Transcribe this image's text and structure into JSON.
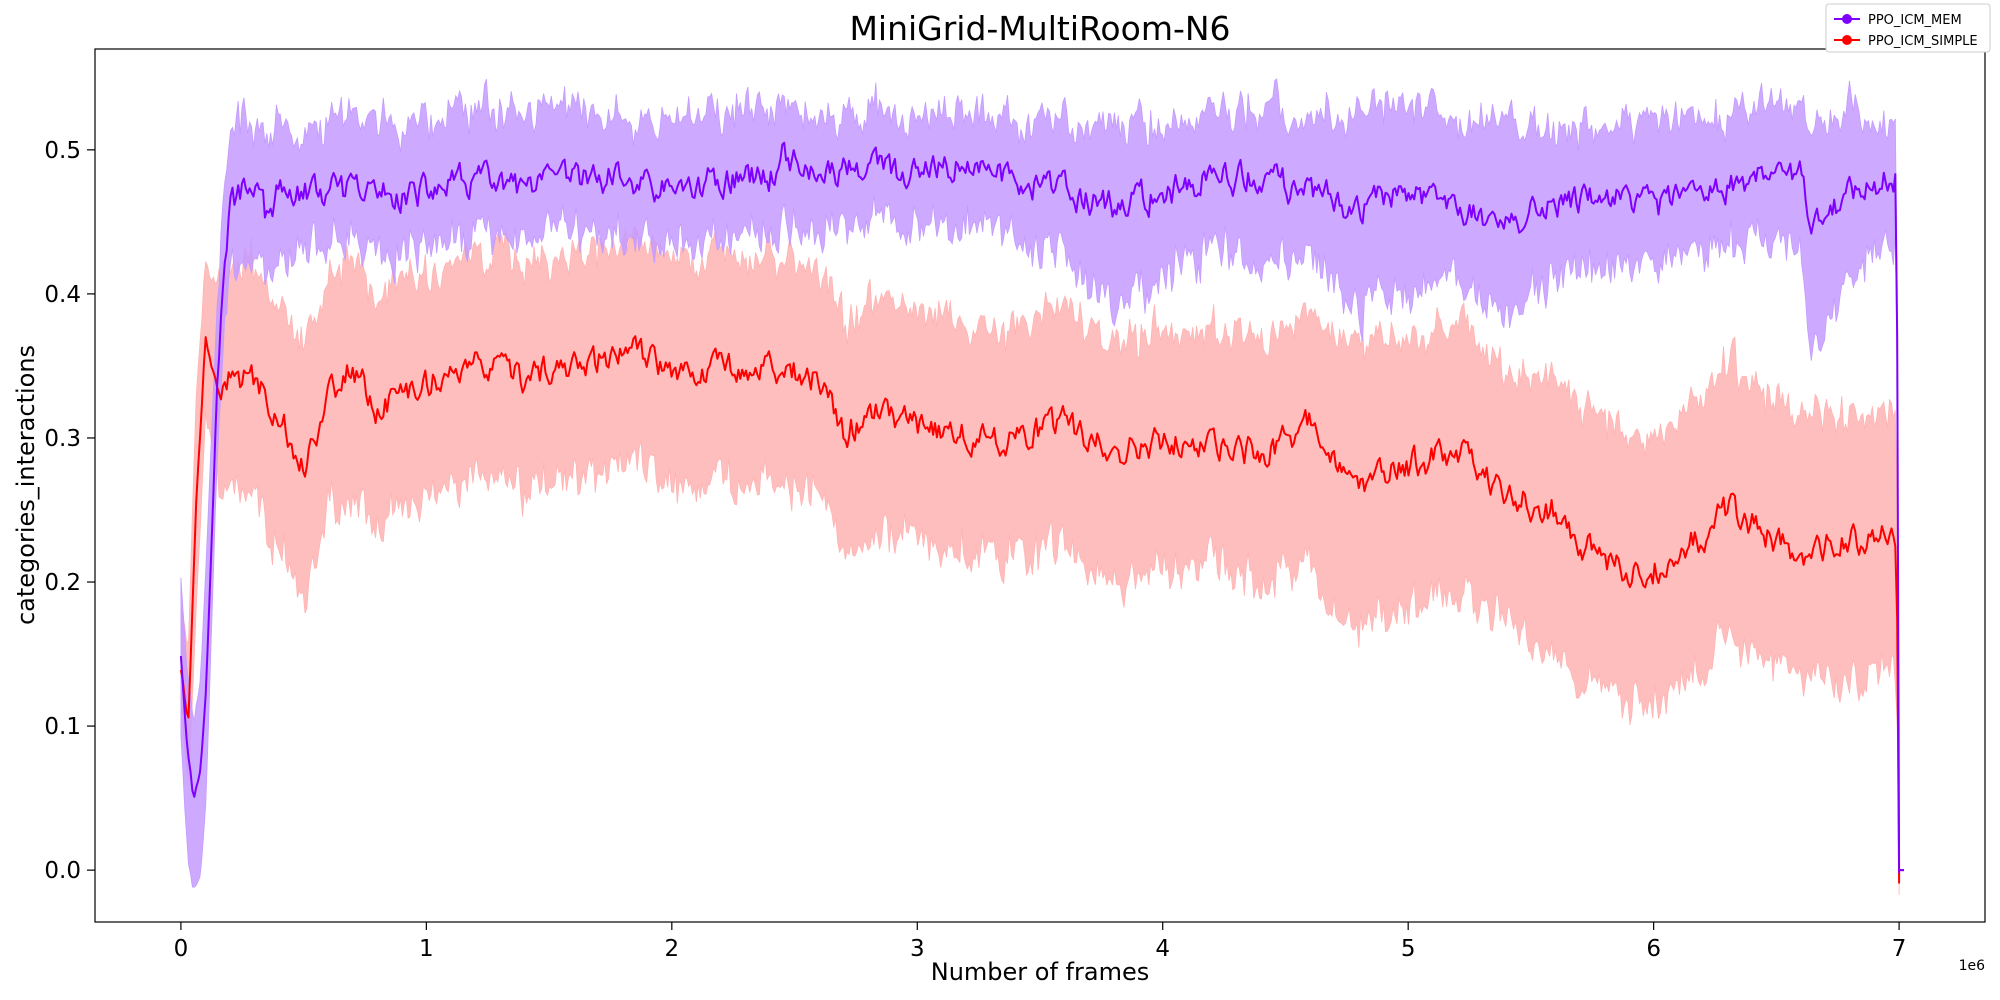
{
  "chart_data": {
    "type": "line",
    "title": "MiniGrid-MultiRoom-N6",
    "xlabel": "Number of frames",
    "ylabel": "categories_interactions",
    "x_offset_label": "1e6",
    "xlim": [
      -0.35,
      7.35
    ],
    "ylim": [
      -0.036,
      0.57
    ],
    "x_ticks": [
      0,
      1,
      2,
      3,
      4,
      5,
      6,
      7
    ],
    "x_tick_labels": [
      "0",
      "1",
      "2",
      "3",
      "4",
      "5",
      "6",
      "7"
    ],
    "y_ticks": [
      0.0,
      0.1,
      0.2,
      0.3,
      0.4,
      0.5
    ],
    "y_tick_labels": [
      "0.0",
      "0.1",
      "0.2",
      "0.3",
      "0.4",
      "0.5"
    ],
    "grid": false,
    "legend_position": "top-right",
    "series": [
      {
        "name": "PPO_ICM_MEM",
        "color": "#7f00ff",
        "band_color": "#c49bff",
        "x": [
          0.0,
          0.03,
          0.05,
          0.08,
          0.1,
          0.13,
          0.15,
          0.18,
          0.2,
          0.25,
          0.3,
          0.35,
          0.4,
          0.5,
          0.6,
          0.8,
          1.0,
          1.2,
          1.4,
          1.6,
          1.8,
          2.0,
          2.2,
          2.4,
          2.45,
          2.6,
          2.8,
          3.0,
          3.2,
          3.4,
          3.6,
          3.8,
          4.0,
          4.2,
          4.4,
          4.6,
          4.8,
          5.0,
          5.2,
          5.4,
          5.6,
          5.8,
          6.0,
          6.2,
          6.4,
          6.6,
          6.65,
          6.8,
          6.95,
          6.99,
          7.0,
          7.02
        ],
        "y": [
          0.15,
          0.08,
          0.05,
          0.07,
          0.12,
          0.25,
          0.35,
          0.42,
          0.46,
          0.47,
          0.48,
          0.45,
          0.47,
          0.47,
          0.47,
          0.47,
          0.47,
          0.48,
          0.47,
          0.48,
          0.48,
          0.47,
          0.48,
          0.48,
          0.5,
          0.48,
          0.49,
          0.48,
          0.49,
          0.48,
          0.47,
          0.46,
          0.47,
          0.48,
          0.48,
          0.47,
          0.46,
          0.47,
          0.46,
          0.45,
          0.46,
          0.47,
          0.46,
          0.47,
          0.48,
          0.48,
          0.45,
          0.47,
          0.48,
          0.48,
          0.0,
          0.0
        ],
        "band_low": [
          0.1,
          0.01,
          -0.01,
          0.0,
          0.05,
          0.2,
          0.3,
          0.39,
          0.42,
          0.43,
          0.44,
          0.42,
          0.43,
          0.44,
          0.44,
          0.44,
          0.44,
          0.45,
          0.44,
          0.45,
          0.45,
          0.44,
          0.45,
          0.45,
          0.46,
          0.45,
          0.46,
          0.45,
          0.46,
          0.45,
          0.43,
          0.4,
          0.42,
          0.44,
          0.43,
          0.43,
          0.4,
          0.41,
          0.42,
          0.39,
          0.42,
          0.43,
          0.42,
          0.44,
          0.45,
          0.43,
          0.37,
          0.42,
          0.45,
          0.45,
          0.0,
          0.0
        ],
        "band_high": [
          0.2,
          0.13,
          0.1,
          0.13,
          0.2,
          0.32,
          0.4,
          0.47,
          0.5,
          0.51,
          0.51,
          0.49,
          0.51,
          0.5,
          0.51,
          0.51,
          0.51,
          0.52,
          0.51,
          0.52,
          0.51,
          0.51,
          0.52,
          0.52,
          0.53,
          0.51,
          0.52,
          0.51,
          0.52,
          0.51,
          0.51,
          0.51,
          0.51,
          0.52,
          0.52,
          0.51,
          0.52,
          0.52,
          0.51,
          0.52,
          0.5,
          0.51,
          0.51,
          0.51,
          0.52,
          0.52,
          0.51,
          0.52,
          0.51,
          0.51,
          0.0,
          0.0
        ]
      },
      {
        "name": "PPO_ICM_SIMPLE",
        "color": "#ff0000",
        "band_color": "#ffb3b3",
        "x": [
          0.0,
          0.03,
          0.06,
          0.1,
          0.13,
          0.15,
          0.2,
          0.3,
          0.35,
          0.45,
          0.5,
          0.6,
          0.7,
          0.8,
          1.0,
          1.2,
          1.4,
          1.6,
          1.8,
          2.0,
          2.2,
          2.4,
          2.6,
          2.7,
          2.8,
          3.0,
          3.2,
          3.4,
          3.6,
          3.8,
          4.0,
          4.2,
          4.4,
          4.6,
          4.7,
          4.8,
          5.0,
          5.2,
          5.4,
          5.6,
          5.7,
          5.8,
          6.0,
          6.2,
          6.3,
          6.4,
          6.6,
          6.8,
          6.99,
          7.0,
          7.02
        ],
        "y": [
          0.14,
          0.1,
          0.25,
          0.37,
          0.35,
          0.33,
          0.34,
          0.34,
          0.33,
          0.3,
          0.28,
          0.33,
          0.35,
          0.32,
          0.34,
          0.35,
          0.34,
          0.35,
          0.36,
          0.35,
          0.35,
          0.35,
          0.34,
          0.3,
          0.32,
          0.31,
          0.3,
          0.3,
          0.31,
          0.29,
          0.3,
          0.29,
          0.29,
          0.31,
          0.29,
          0.27,
          0.28,
          0.29,
          0.26,
          0.25,
          0.23,
          0.21,
          0.21,
          0.23,
          0.25,
          0.24,
          0.22,
          0.23,
          0.23,
          0.0,
          0.0
        ],
        "band_low": [
          0.12,
          0.06,
          0.18,
          0.32,
          0.3,
          0.28,
          0.27,
          0.27,
          0.25,
          0.22,
          0.2,
          0.26,
          0.27,
          0.25,
          0.27,
          0.28,
          0.27,
          0.28,
          0.29,
          0.28,
          0.28,
          0.28,
          0.27,
          0.23,
          0.24,
          0.24,
          0.23,
          0.23,
          0.23,
          0.21,
          0.22,
          0.22,
          0.21,
          0.22,
          0.19,
          0.18,
          0.19,
          0.2,
          0.18,
          0.16,
          0.14,
          0.13,
          0.13,
          0.15,
          0.17,
          0.16,
          0.15,
          0.14,
          0.15,
          0.0,
          0.0
        ],
        "band_high": [
          0.18,
          0.15,
          0.32,
          0.42,
          0.41,
          0.4,
          0.41,
          0.41,
          0.4,
          0.38,
          0.36,
          0.4,
          0.42,
          0.39,
          0.41,
          0.42,
          0.41,
          0.42,
          0.43,
          0.42,
          0.42,
          0.42,
          0.41,
          0.37,
          0.39,
          0.38,
          0.37,
          0.37,
          0.38,
          0.36,
          0.37,
          0.36,
          0.36,
          0.38,
          0.37,
          0.36,
          0.36,
          0.37,
          0.34,
          0.34,
          0.32,
          0.3,
          0.3,
          0.32,
          0.34,
          0.33,
          0.31,
          0.31,
          0.31,
          0.0,
          0.0
        ]
      }
    ]
  }
}
